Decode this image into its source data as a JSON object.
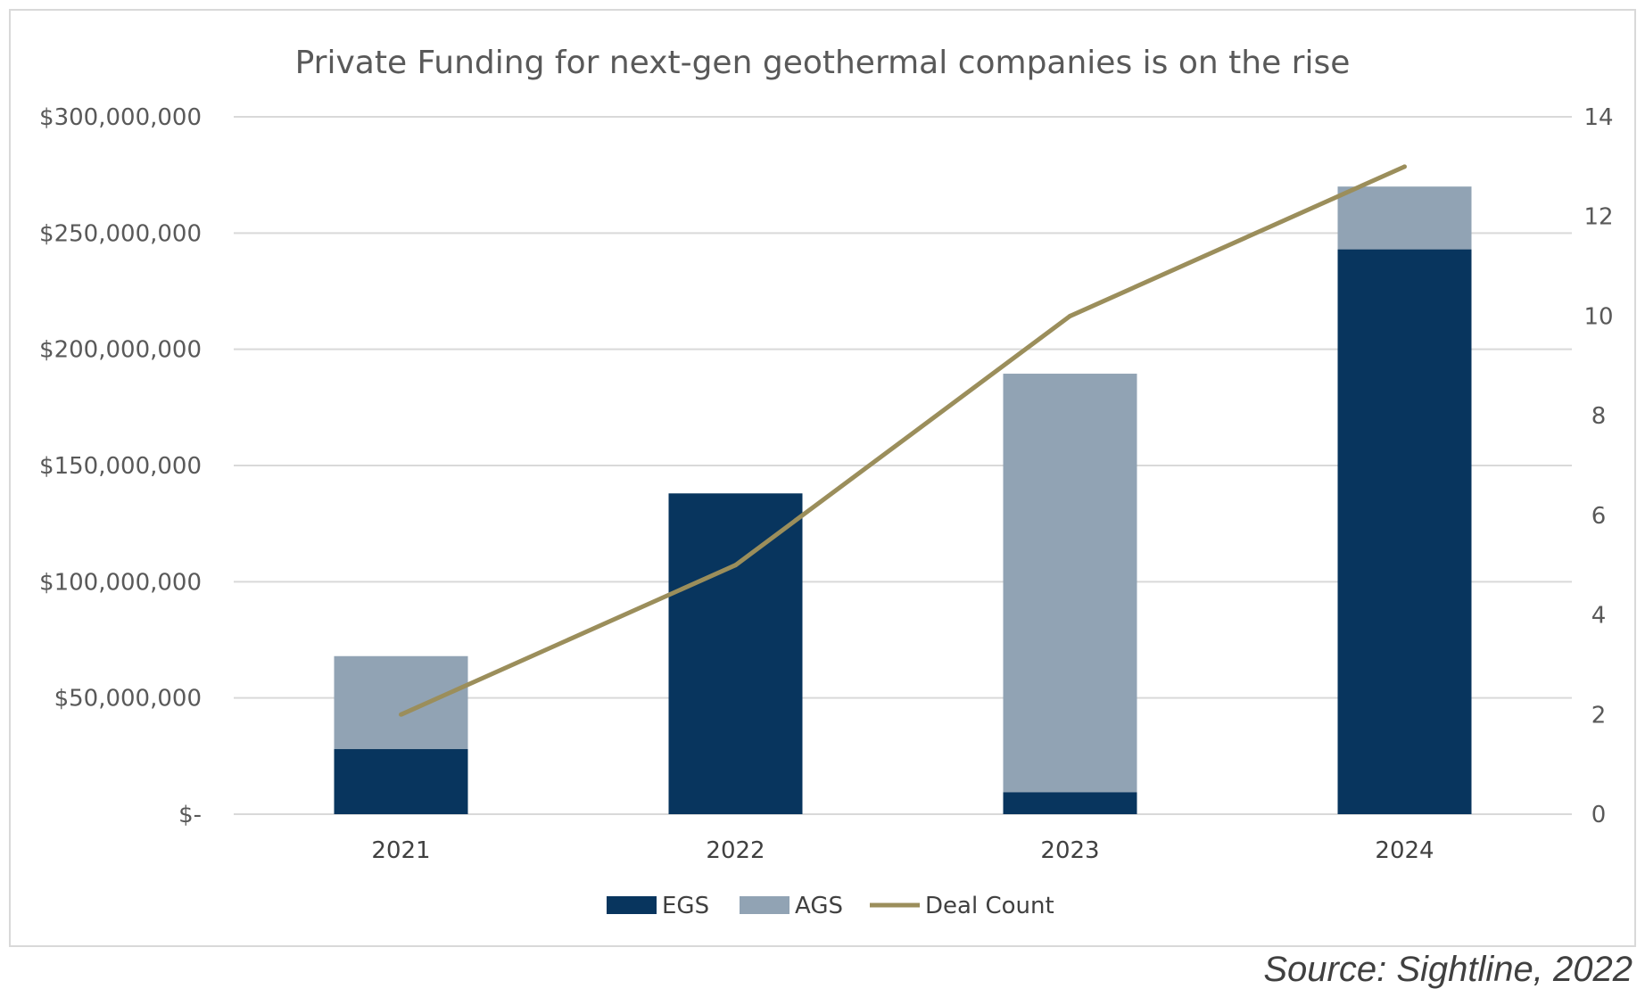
{
  "source_note": "Source: Sightline, 2022",
  "colors": {
    "egs": "#08355e",
    "ags": "#91a3b4",
    "deal_count": "#9b8e5b",
    "grid": "#d9d9d9"
  },
  "chart_data": {
    "type": "bar",
    "stacked": true,
    "title": "Private Funding for next-gen geothermal companies is on the rise",
    "categories": [
      "2021",
      "2022",
      "2023",
      "2024"
    ],
    "series": [
      {
        "name": "EGS",
        "type": "bar",
        "axis": "left",
        "values": [
          28000000,
          138000000,
          9500000,
          243000000
        ]
      },
      {
        "name": "AGS",
        "type": "bar",
        "axis": "left",
        "values": [
          40000000,
          0,
          180000000,
          27000000
        ]
      },
      {
        "name": "Deal Count",
        "type": "line",
        "axis": "right",
        "values": [
          2,
          5,
          10,
          13
        ]
      }
    ],
    "y_left": {
      "ylim": [
        0,
        300000000
      ],
      "ticks": [
        "$-",
        "$50,000,000",
        "$100,000,000",
        "$150,000,000",
        "$200,000,000",
        "$250,000,000",
        "$300,000,000"
      ]
    },
    "y_right": {
      "ylim": [
        0,
        14
      ],
      "ticks": [
        "0",
        "2",
        "4",
        "6",
        "8",
        "10",
        "12",
        "14"
      ]
    },
    "grid": true,
    "legend_position": "bottom"
  }
}
